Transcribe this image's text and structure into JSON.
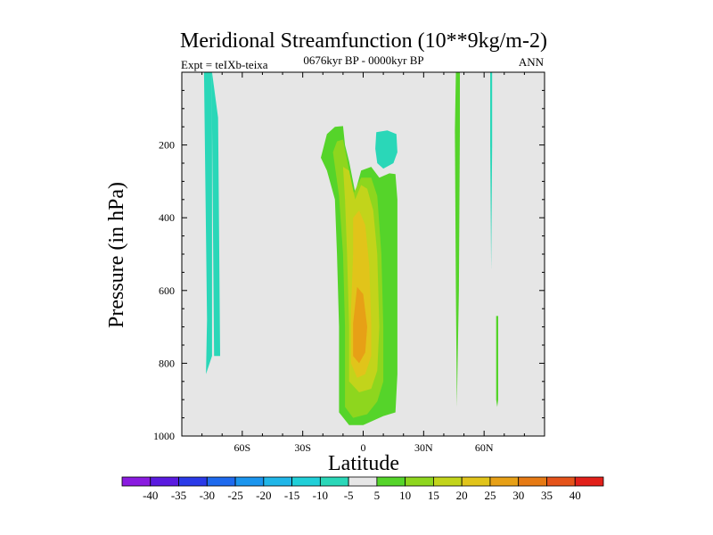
{
  "chart_data": {
    "type": "heatmap",
    "title": "Meridional Streamfunction (10**9kg/m-2)",
    "subtitle": "0676kyr BP - 0000kyr BP",
    "left_label": "Expt = teIXb-teixa",
    "right_label": "ANN",
    "xlabel": "Latitude",
    "ylabel": "Pressure (in hPa)",
    "xlim": [
      -90,
      90
    ],
    "ylim": [
      1000,
      0
    ],
    "x_ticks": [
      {
        "value": -60,
        "label": "60S"
      },
      {
        "value": -30,
        "label": "30S"
      },
      {
        "value": 0,
        "label": "0"
      },
      {
        "value": 30,
        "label": "30N"
      },
      {
        "value": 60,
        "label": "60N"
      }
    ],
    "y_ticks": [
      {
        "value": 200,
        "label": "200"
      },
      {
        "value": 400,
        "label": "400"
      },
      {
        "value": 600,
        "label": "600"
      },
      {
        "value": 800,
        "label": "800"
      },
      {
        "value": 1000,
        "label": "1000"
      }
    ],
    "background_color": "#e6e6e6",
    "colorbar": {
      "labels": [
        "-40",
        "-35",
        "-30",
        "-25",
        "-20",
        "-15",
        "-10",
        "-5",
        "5",
        "10",
        "15",
        "20",
        "25",
        "30",
        "35",
        "40"
      ],
      "colors": [
        "#8a1be0",
        "#5a1ae0",
        "#2a3ae8",
        "#1e6aee",
        "#1b95ee",
        "#20b6e8",
        "#20cfd8",
        "#2ad7b8",
        "#e6e6e6",
        "#55d42a",
        "#8ed61e",
        "#c2d41b",
        "#e1c41a",
        "#e7a016",
        "#e67a14",
        "#e5531a",
        "#e2201a"
      ]
    },
    "contours": [
      {
        "name": "neg-5-sh-highlat",
        "level": -5,
        "color": "#2ad7b8",
        "points": [
          [
            -79,
            0
          ],
          [
            -75,
            0
          ],
          [
            -75,
            125
          ],
          [
            -74,
            780
          ],
          [
            -71,
            780
          ],
          [
            -72,
            125
          ],
          [
            -75,
            0
          ]
        ]
      },
      {
        "name": "neg-5-sh-tail",
        "level": -5,
        "color": "#2ad7b8",
        "points": [
          [
            -79,
            0
          ],
          [
            -77.5,
            680
          ],
          [
            -78,
            830
          ],
          [
            -75,
            780
          ],
          [
            -75,
            125
          ],
          [
            -75,
            0
          ]
        ]
      },
      {
        "name": "neg-5-nh-tropics",
        "level": -5,
        "color": "#2ad7b8",
        "points": [
          [
            6.5,
            165
          ],
          [
            12,
            160
          ],
          [
            16.5,
            170
          ],
          [
            17,
            220
          ],
          [
            15,
            250
          ],
          [
            10,
            265
          ],
          [
            7,
            250
          ],
          [
            6,
            210
          ]
        ]
      },
      {
        "name": "neg-5-nh-highlat",
        "level": -5,
        "color": "#2ad7b8",
        "points": [
          [
            63,
            0
          ],
          [
            64,
            0
          ],
          [
            64,
            200
          ],
          [
            63.5,
            545
          ],
          [
            63,
            200
          ]
        ]
      },
      {
        "name": "pos-5-main-cell",
        "level": 5,
        "color": "#55d42a",
        "points": [
          [
            -21,
            235
          ],
          [
            -18,
            170
          ],
          [
            -14,
            150
          ],
          [
            -10,
            148
          ],
          [
            -9,
            200
          ],
          [
            -7,
            245
          ],
          [
            -4,
            330
          ],
          [
            -1,
            270
          ],
          [
            4,
            260
          ],
          [
            8,
            290
          ],
          [
            13,
            278
          ],
          [
            16,
            280
          ],
          [
            17,
            350
          ],
          [
            17,
            500
          ],
          [
            17,
            700
          ],
          [
            17,
            830
          ],
          [
            16,
            935
          ],
          [
            10,
            945
          ],
          [
            0,
            970
          ],
          [
            -7,
            970
          ],
          [
            -12,
            935
          ],
          [
            -12,
            700
          ],
          [
            -13,
            500
          ],
          [
            -14,
            350
          ],
          [
            -18,
            270
          ]
        ]
      },
      {
        "name": "pos-10-main-cell",
        "level": 10,
        "color": "#8ed61e",
        "points": [
          [
            -15,
            220
          ],
          [
            -13,
            190
          ],
          [
            -10,
            185
          ],
          [
            -8,
            240
          ],
          [
            -5,
            335
          ],
          [
            -1,
            290
          ],
          [
            4,
            290
          ],
          [
            7,
            340
          ],
          [
            9,
            500
          ],
          [
            10,
            700
          ],
          [
            10,
            850
          ],
          [
            7,
            905
          ],
          [
            2,
            940
          ],
          [
            -5,
            950
          ],
          [
            -9,
            920
          ],
          [
            -9,
            700
          ],
          [
            -10,
            500
          ],
          [
            -12,
            340
          ]
        ]
      },
      {
        "name": "pos-15-main-cell",
        "level": 15,
        "color": "#c2d41b",
        "points": [
          [
            -10,
            260
          ],
          [
            -7,
            270
          ],
          [
            -4,
            350
          ],
          [
            -1,
            310
          ],
          [
            2,
            320
          ],
          [
            5,
            380
          ],
          [
            7,
            500
          ],
          [
            8,
            700
          ],
          [
            7,
            820
          ],
          [
            4,
            870
          ],
          [
            -2,
            880
          ],
          [
            -7,
            850
          ],
          [
            -7,
            700
          ],
          [
            -8,
            500
          ],
          [
            -9,
            350
          ]
        ]
      },
      {
        "name": "pos-20-main-cell",
        "level": 20,
        "color": "#e1c41a",
        "points": [
          [
            -5,
            400
          ],
          [
            -2,
            380
          ],
          [
            1,
            420
          ],
          [
            3,
            530
          ],
          [
            4,
            690
          ],
          [
            4,
            780
          ],
          [
            1,
            830
          ],
          [
            -3,
            840
          ],
          [
            -6,
            800
          ],
          [
            -6,
            650
          ],
          [
            -5,
            500
          ]
        ]
      },
      {
        "name": "pos-25-main-cell",
        "level": 25,
        "color": "#e7a016",
        "points": [
          [
            -3,
            590
          ],
          [
            0,
            610
          ],
          [
            2,
            700
          ],
          [
            1,
            770
          ],
          [
            -2,
            800
          ],
          [
            -5,
            780
          ],
          [
            -5,
            690
          ]
        ]
      },
      {
        "name": "pos-5-nh-45",
        "level": 5,
        "color": "#55d42a",
        "points": [
          [
            46,
            0
          ],
          [
            48,
            0
          ],
          [
            48,
            160
          ],
          [
            47.5,
            600
          ],
          [
            46.5,
            920
          ],
          [
            46,
            600
          ],
          [
            45.5,
            160
          ]
        ]
      },
      {
        "name": "pos-5-nh-65",
        "level": 5,
        "color": "#55d42a",
        "points": [
          [
            66,
            670
          ],
          [
            67,
            670
          ],
          [
            67,
            900
          ],
          [
            66.5,
            920
          ],
          [
            66,
            900
          ]
        ]
      }
    ]
  }
}
